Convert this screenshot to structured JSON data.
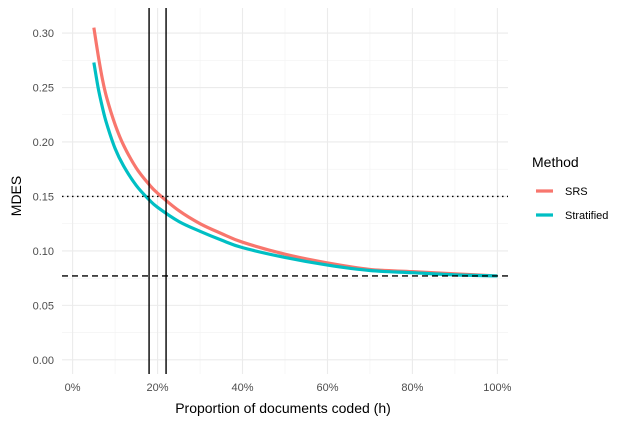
{
  "chart_data": {
    "type": "line",
    "xlabel": "Proportion of documents coded (h)",
    "ylabel": "MDES",
    "xlim": [
      -0.025,
      1.025
    ],
    "ylim": [
      -0.013,
      0.323
    ],
    "x_ticks": [
      0,
      0.2,
      0.4,
      0.6,
      0.8,
      1.0
    ],
    "x_tick_labels": [
      "0%",
      "20%",
      "40%",
      "60%",
      "80%",
      "100%"
    ],
    "y_ticks": [
      0.0,
      0.05,
      0.1,
      0.15,
      0.2,
      0.25,
      0.3
    ],
    "y_tick_labels": [
      "0.00",
      "0.05",
      "0.10",
      "0.15",
      "0.20",
      "0.25",
      "0.30"
    ],
    "grid": true,
    "legend": {
      "title": "Method",
      "placement": "right"
    },
    "series": [
      {
        "name": "SRS",
        "color": "#F8766D",
        "x": [
          0.05,
          0.06,
          0.07,
          0.08,
          0.1,
          0.12,
          0.15,
          0.18,
          0.2,
          0.25,
          0.3,
          0.35,
          0.4,
          0.5,
          0.6,
          0.7,
          0.8,
          0.9,
          1.0
        ],
        "y": [
          0.305,
          0.28,
          0.258,
          0.241,
          0.216,
          0.197,
          0.176,
          0.161,
          0.153,
          0.137,
          0.125,
          0.116,
          0.108,
          0.097,
          0.089,
          0.083,
          0.081,
          0.079,
          0.077
        ]
      },
      {
        "name": "Stratified",
        "color": "#00BFC4",
        "x": [
          0.05,
          0.06,
          0.07,
          0.08,
          0.1,
          0.12,
          0.15,
          0.18,
          0.2,
          0.25,
          0.3,
          0.35,
          0.4,
          0.5,
          0.6,
          0.7,
          0.8,
          0.9,
          1.0
        ],
        "y": [
          0.273,
          0.25,
          0.232,
          0.217,
          0.194,
          0.178,
          0.16,
          0.147,
          0.14,
          0.127,
          0.118,
          0.11,
          0.103,
          0.094,
          0.087,
          0.082,
          0.08,
          0.078,
          0.077
        ]
      }
    ],
    "reference_lines": [
      {
        "orientation": "vertical",
        "value": 0.18,
        "style": "solid"
      },
      {
        "orientation": "vertical",
        "value": 0.22,
        "style": "solid"
      },
      {
        "orientation": "horizontal",
        "value": 0.15,
        "style": "dotted"
      },
      {
        "orientation": "horizontal",
        "value": 0.077,
        "style": "dashed"
      }
    ]
  }
}
